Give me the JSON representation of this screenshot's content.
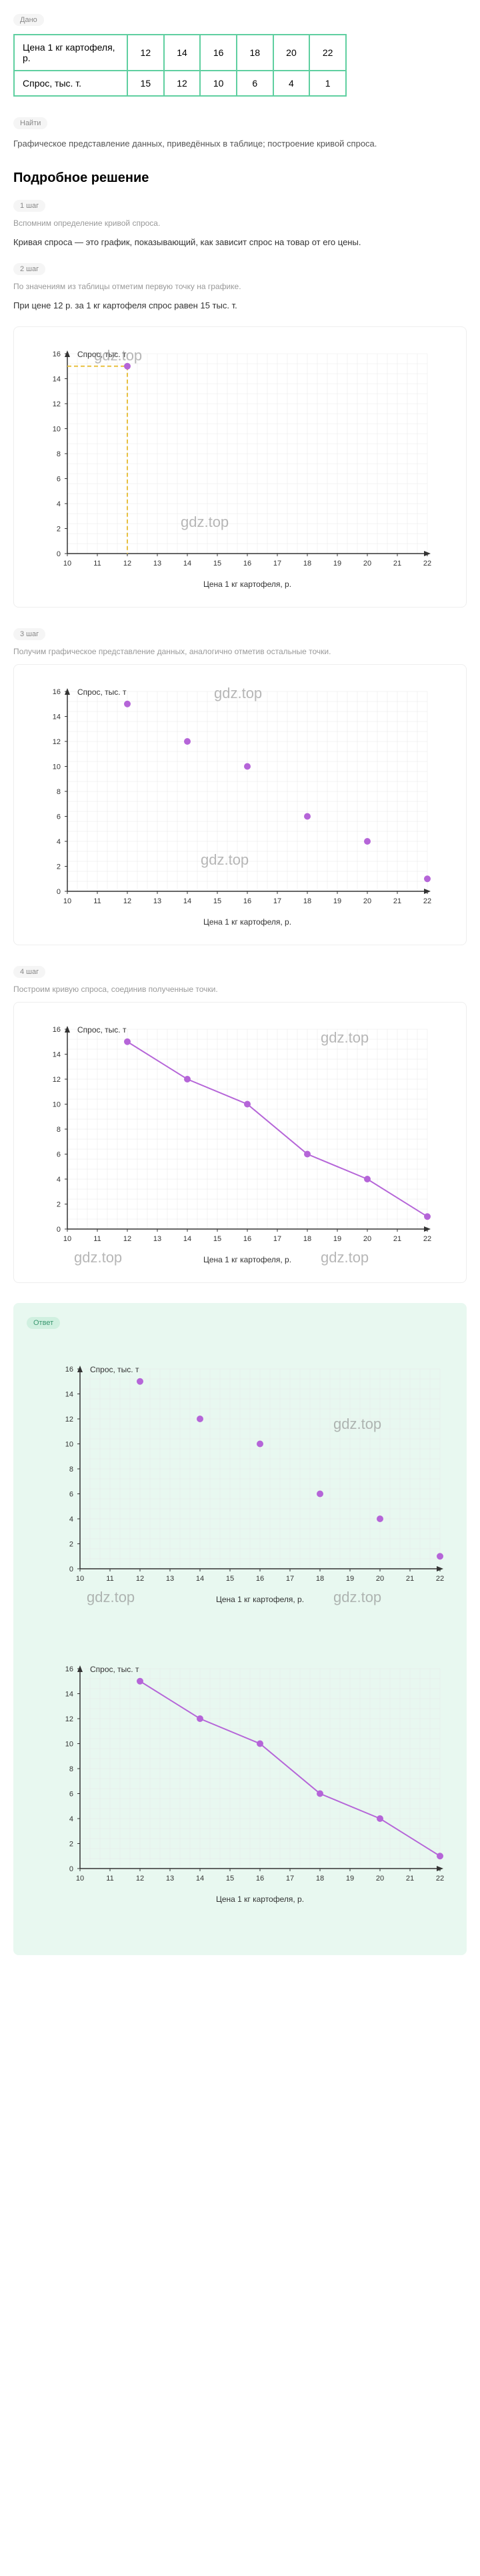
{
  "labels": {
    "dano": "Дано",
    "naiti": "Найти",
    "otvet": "Ответ"
  },
  "watermark": "gdz.top",
  "table": {
    "row1_label": "Цена 1 кг картофеля, р.",
    "row2_label": "Спрос, тыс. т.",
    "prices": [
      "12",
      "14",
      "16",
      "18",
      "20",
      "22"
    ],
    "demand": [
      "15",
      "12",
      "10",
      "6",
      "4",
      "1"
    ]
  },
  "naiti_text": "Графическое представление данных, приведённых в таблице; построение кривой спроса.",
  "heading": "Подробное решение",
  "steps": {
    "s1": {
      "label": "1 шаг",
      "intro": "Вспомним определение кривой спроса.",
      "text": "Кривая спроса — это график, показывающий, как зависит спрос на товар от его цены."
    },
    "s2": {
      "label": "2 шаг",
      "intro": "По значениям из таблицы отметим первую точку на графике.",
      "text": "При цене 12 р. за 1 кг картофеля спрос равен 15 тыс. т."
    },
    "s3": {
      "label": "3 шаг",
      "intro": "Получим графическое представление данных, аналогично отметив остальные точки."
    },
    "s4": {
      "label": "4 шаг",
      "intro": "Построим кривую спроса, соединив полученные точки."
    }
  },
  "chart": {
    "ylabel": "Спрос, тыс. т",
    "xlabel": "Цена 1 кг картофеля, р.",
    "xlim": [
      10,
      22
    ],
    "ylim": [
      0,
      16
    ],
    "xticks": [
      10,
      11,
      12,
      13,
      14,
      15,
      16,
      17,
      18,
      19,
      20,
      21,
      22
    ],
    "yticks": [
      0,
      2,
      4,
      6,
      8,
      10,
      12,
      14,
      16
    ],
    "grid_color": "#e8e8e8",
    "axis_color": "#333",
    "point_color": "#b565d8",
    "line_color": "#b565d8",
    "dashed_color": "#e8c040",
    "tick_fontsize": 11,
    "label_fontsize": 12,
    "points": [
      {
        "x": 12,
        "y": 15
      },
      {
        "x": 14,
        "y": 12
      },
      {
        "x": 16,
        "y": 10
      },
      {
        "x": 18,
        "y": 6
      },
      {
        "x": 20,
        "y": 4
      },
      {
        "x": 22,
        "y": 1
      }
    ]
  }
}
